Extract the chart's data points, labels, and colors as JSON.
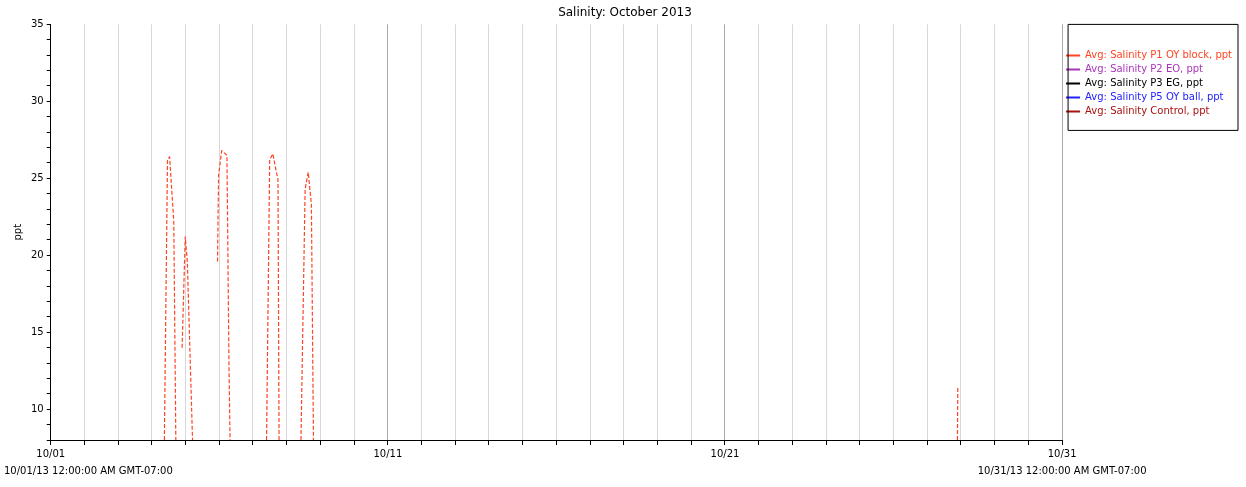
{
  "chart_data": {
    "type": "line",
    "title": "Salinity: October 2013",
    "ylabel": "ppt",
    "x": [
      "2013-10-04T08:54",
      "2013-10-04T11:08",
      "2013-10-04T12:37",
      "2013-10-04T15:36",
      "2013-10-04T17:04",
      "2013-10-04T19:00",
      "2013-10-04T21:32",
      "2013-10-04T23:46",
      "2013-10-05T01:15",
      "2013-10-05T04:57",
      "2013-10-05T12:00",
      "2013-10-05T22:45",
      "2013-10-05T23:30",
      "2013-10-06T01:44",
      "2013-10-06T05:27",
      "2013-10-06T06:56",
      "2013-10-06T07:40",
      "2013-10-07T00:00",
      "2013-10-07T09:39",
      "2013-10-07T11:53",
      "2013-10-07T14:07",
      "2013-10-07T15:36",
      "2013-10-07T17:48",
      "2013-10-07T18:33",
      "2013-10-08T00:00",
      "2013-10-08T10:09",
      "2013-10-08T13:07",
      "2013-10-08T15:20",
      "2013-10-08T17:34",
      "2013-10-08T19:03",
      "2013-10-20T00:00",
      "2013-10-27T21:30",
      "2013-10-27T21:45"
    ],
    "series": [
      {
        "name": "Avg: Salinity P1 OY block, ppt",
        "color": "#ff4422",
        "values": [
          8,
          26.2,
          26.4,
          22.2,
          8,
          null,
          14.0,
          21.2,
          19.6,
          8,
          null,
          19.6,
          25.2,
          26.8,
          26.5,
          12.6,
          8,
          null,
          8,
          26.2,
          26.6,
          25.9,
          24.9,
          8,
          null,
          8,
          24.3,
          25.4,
          23.3,
          8,
          null,
          8,
          11.5
        ]
      },
      {
        "name": "Avg: Salinity P2 EO, ppt",
        "color": "#aa33bb",
        "values": [
          null,
          null,
          null,
          null,
          null,
          null,
          null,
          null,
          null,
          null,
          null,
          null,
          null,
          null,
          null,
          null,
          null,
          null,
          null,
          null,
          null,
          null,
          null,
          null,
          null,
          null,
          null,
          null,
          null,
          null,
          null,
          null,
          null
        ]
      },
      {
        "name": "Avg: Salinity P3 EG, ppt",
        "color": "#000000",
        "values": [
          null,
          null,
          null,
          null,
          null,
          null,
          null,
          null,
          null,
          null,
          null,
          null,
          null,
          null,
          null,
          null,
          null,
          null,
          null,
          null,
          null,
          null,
          null,
          null,
          null,
          null,
          null,
          null,
          null,
          null,
          null,
          null,
          null
        ]
      },
      {
        "name": "Avg: Salinity P5 OY ball, ppt",
        "color": "#2222ff",
        "values": [
          null,
          null,
          null,
          null,
          null,
          null,
          null,
          null,
          null,
          null,
          null,
          null,
          null,
          null,
          null,
          null,
          null,
          null,
          null,
          null,
          null,
          null,
          null,
          null,
          null,
          null,
          null,
          null,
          null,
          null,
          null,
          null,
          null
        ]
      },
      {
        "name": "Avg: Salinity Control, ppt",
        "color": "#aa1111",
        "values": [
          null,
          null,
          null,
          null,
          null,
          null,
          null,
          null,
          null,
          null,
          null,
          null,
          null,
          null,
          null,
          null,
          null,
          null,
          null,
          null,
          null,
          null,
          null,
          null,
          null,
          null,
          null,
          null,
          null,
          null,
          null,
          null,
          null
        ]
      }
    ],
    "xlim": [
      "2013-10-01",
      "2013-10-31"
    ],
    "xticks": [
      {
        "value": "2013-10-01",
        "label": "10/01"
      },
      {
        "value": "2013-10-02",
        "label": null
      },
      {
        "value": "2013-10-03",
        "label": null
      },
      {
        "value": "2013-10-04",
        "label": null
      },
      {
        "value": "2013-10-05",
        "label": null
      },
      {
        "value": "2013-10-06",
        "label": null
      },
      {
        "value": "2013-10-07",
        "label": null
      },
      {
        "value": "2013-10-08",
        "label": null
      },
      {
        "value": "2013-10-09",
        "label": null
      },
      {
        "value": "2013-10-10",
        "label": null
      },
      {
        "value": "2013-10-11",
        "label": "10/11"
      },
      {
        "value": "2013-10-12",
        "label": null
      },
      {
        "value": "2013-10-13",
        "label": null
      },
      {
        "value": "2013-10-14",
        "label": null
      },
      {
        "value": "2013-10-15",
        "label": null
      },
      {
        "value": "2013-10-16",
        "label": null
      },
      {
        "value": "2013-10-17",
        "label": null
      },
      {
        "value": "2013-10-18",
        "label": null
      },
      {
        "value": "2013-10-19",
        "label": null
      },
      {
        "value": "2013-10-20",
        "label": null
      },
      {
        "value": "2013-10-21",
        "label": "10/21"
      },
      {
        "value": "2013-10-22",
        "label": null
      },
      {
        "value": "2013-10-23",
        "label": null
      },
      {
        "value": "2013-10-24",
        "label": null
      },
      {
        "value": "2013-10-25",
        "label": null
      },
      {
        "value": "2013-10-26",
        "label": null
      },
      {
        "value": "2013-10-27",
        "label": null
      },
      {
        "value": "2013-10-28",
        "label": null
      },
      {
        "value": "2013-10-29",
        "label": null
      },
      {
        "value": "2013-10-30",
        "label": null
      },
      {
        "value": "2013-10-31",
        "label": "10/31"
      }
    ],
    "ylim": [
      8,
      35
    ],
    "yticks": [
      {
        "value": 8,
        "label": null
      },
      {
        "value": 9,
        "label": null
      },
      10,
      {
        "value": 11,
        "label": null
      },
      {
        "value": 12,
        "label": null
      },
      {
        "value": 13,
        "label": null
      },
      {
        "value": 14,
        "label": null
      },
      15,
      {
        "value": 16,
        "label": null
      },
      {
        "value": 17,
        "label": null
      },
      {
        "value": 18,
        "label": null
      },
      {
        "value": 19,
        "label": null
      },
      20,
      {
        "value": 21,
        "label": null
      },
      {
        "value": 22,
        "label": null
      },
      {
        "value": 23,
        "label": null
      },
      {
        "value": 24,
        "label": null
      },
      25,
      {
        "value": 26,
        "label": null
      },
      {
        "value": 27,
        "label": null
      },
      {
        "value": 28,
        "label": null
      },
      {
        "value": 29,
        "label": null
      },
      30,
      {
        "value": 31,
        "label": null
      },
      {
        "value": 32,
        "label": null
      },
      {
        "value": 33,
        "label": null
      },
      {
        "value": 34,
        "label": null
      },
      35
    ],
    "grid": "x",
    "legend": "right",
    "marker": "none",
    "line_style": "dashed",
    "annotations": [
      "10/01/13 12:00:00 AM GMT-07:00",
      "10/31/13 12:00:00 AM GMT-07:00"
    ]
  }
}
